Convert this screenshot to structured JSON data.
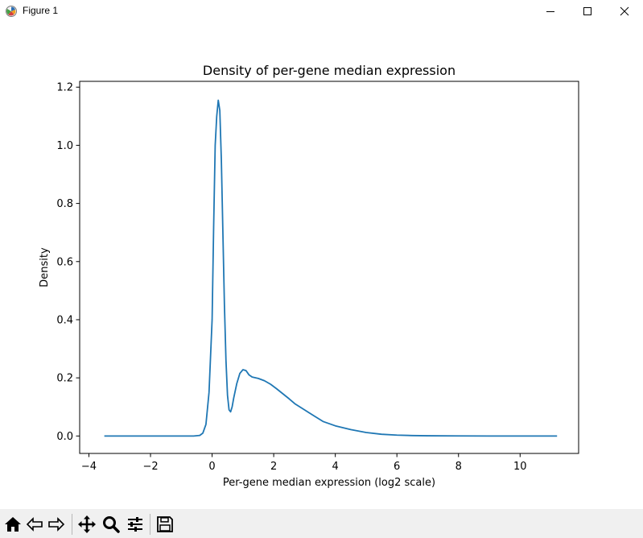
{
  "window": {
    "title": "Figure 1",
    "controls": [
      "minimize",
      "maximize",
      "close"
    ]
  },
  "toolbar": {
    "tools": [
      "home-icon",
      "back-icon",
      "forward-icon",
      "pan-icon",
      "zoom-icon",
      "configure-subplots-icon",
      "save-icon"
    ]
  },
  "chart_data": {
    "type": "line",
    "title": "Density of per-gene median expression",
    "xlabel": "Per-gene median expression (log2 scale)",
    "ylabel": "Density",
    "xlim": [
      -4.3,
      11.9
    ],
    "ylim": [
      -0.06,
      1.22
    ],
    "xticks": [
      -4,
      -2,
      0,
      2,
      4,
      6,
      8,
      10
    ],
    "xtick_labels": [
      "−4",
      "−2",
      "0",
      "2",
      "4",
      "6",
      "8",
      "10"
    ],
    "yticks": [
      0.0,
      0.2,
      0.4,
      0.6,
      0.8,
      1.0,
      1.2
    ],
    "ytick_labels": [
      "0.0",
      "0.2",
      "0.4",
      "0.6",
      "0.8",
      "1.0",
      "1.2"
    ],
    "grid": false,
    "line_color": "#1f77b4",
    "series": [
      {
        "x": [
          -3.5,
          -1.0,
          -0.6,
          -0.4,
          -0.3,
          -0.2,
          -0.1,
          0.0,
          0.05,
          0.1,
          0.15,
          0.2,
          0.25,
          0.3,
          0.35,
          0.4,
          0.45,
          0.5,
          0.55,
          0.6,
          0.65,
          0.7,
          0.8,
          0.9,
          1.0,
          1.1,
          1.2,
          1.3,
          1.5,
          1.7,
          1.9,
          2.1,
          2.3,
          2.5,
          2.7,
          3.0,
          3.3,
          3.6,
          4.0,
          4.5,
          5.0,
          5.5,
          6.0,
          6.5,
          7.0,
          8.0,
          9.0,
          10.0,
          11.2
        ],
        "y": [
          0.0,
          0.0,
          0.0,
          0.002,
          0.01,
          0.04,
          0.15,
          0.4,
          0.72,
          1.0,
          1.1,
          1.155,
          1.12,
          0.95,
          0.7,
          0.45,
          0.26,
          0.14,
          0.09,
          0.083,
          0.1,
          0.13,
          0.18,
          0.215,
          0.228,
          0.225,
          0.21,
          0.203,
          0.198,
          0.19,
          0.178,
          0.162,
          0.145,
          0.128,
          0.11,
          0.09,
          0.07,
          0.05,
          0.035,
          0.022,
          0.012,
          0.006,
          0.003,
          0.0015,
          0.0008,
          0.0002,
          0.0,
          0.0,
          0.0
        ]
      }
    ]
  }
}
